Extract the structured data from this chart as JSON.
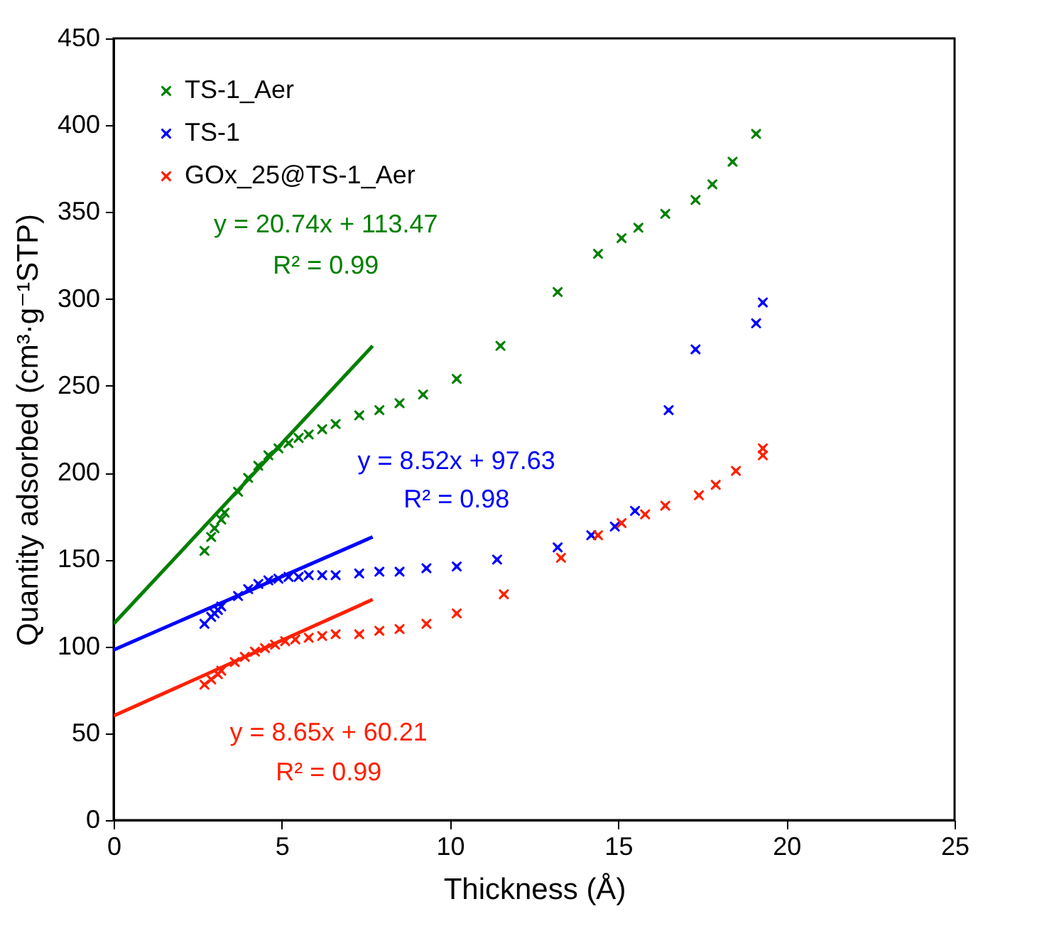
{
  "chart_data": {
    "type": "scatter",
    "xlabel": "Thickness (Å)",
    "ylabel": "Quantity adsorbed (cm³·g⁻¹STP)",
    "xlim": [
      0,
      25
    ],
    "xticks": [
      0,
      5,
      10,
      15,
      20,
      25
    ],
    "ylim": [
      0,
      450
    ],
    "yticks": [
      0,
      50,
      100,
      150,
      200,
      250,
      300,
      350,
      400,
      450
    ],
    "grid": false,
    "legend": "top left",
    "marker": "cross",
    "series": [
      {
        "name": "TS-1_Aer",
        "color": "#008000",
        "x": [
          2.7,
          2.9,
          3.0,
          3.2,
          3.3,
          3.7,
          4.0,
          4.3,
          4.6,
          4.9,
          5.2,
          5.5,
          5.8,
          6.2,
          6.6,
          7.3,
          7.9,
          8.5,
          9.2,
          10.2,
          11.5,
          13.2,
          14.4,
          15.1,
          15.6,
          16.4,
          17.3,
          17.8,
          18.4,
          19.1
        ],
        "values": [
          155,
          163,
          168,
          173,
          177,
          189,
          197,
          204,
          210,
          214,
          217,
          220,
          222,
          225,
          228,
          233,
          236,
          240,
          245,
          254,
          273,
          304,
          326,
          335,
          341,
          349,
          357,
          366,
          379,
          395
        ]
      },
      {
        "name": "TS-1",
        "color": "#0000ff",
        "x": [
          2.7,
          2.9,
          3.0,
          3.1,
          3.2,
          3.7,
          4.0,
          4.3,
          4.6,
          4.9,
          5.2,
          5.5,
          5.8,
          6.2,
          6.6,
          7.3,
          7.9,
          8.5,
          9.3,
          10.2,
          11.4,
          13.2,
          14.2,
          14.9,
          15.5,
          16.5,
          17.3,
          19.1,
          19.3
        ],
        "values": [
          113,
          117,
          119,
          121,
          123,
          129,
          133,
          136,
          138,
          139,
          140,
          140,
          141,
          141,
          141,
          142,
          143,
          143,
          145,
          146,
          150,
          157,
          164,
          169,
          178,
          236,
          271,
          286,
          298
        ]
      },
      {
        "name": "GOx_25@TS-1_Aer",
        "color": "#ff2000",
        "x": [
          2.7,
          2.9,
          3.1,
          3.2,
          3.6,
          3.9,
          4.2,
          4.5,
          4.8,
          5.1,
          5.4,
          5.8,
          6.2,
          6.6,
          7.3,
          7.9,
          8.5,
          9.3,
          10.2,
          11.6,
          13.3,
          14.4,
          15.1,
          15.8,
          16.4,
          17.4,
          17.9,
          18.5,
          19.3,
          19.3
        ],
        "values": [
          78,
          81,
          84,
          86,
          91,
          94,
          97,
          99,
          101,
          103,
          104,
          105,
          106,
          107,
          107,
          109,
          110,
          113,
          119,
          130,
          151,
          164,
          171,
          176,
          181,
          187,
          193,
          201,
          210,
          214
        ]
      },
      {
        "type": "line",
        "marker": "none",
        "color": "#008000",
        "x": [
          0,
          7.7
        ],
        "values": [
          113,
          273
        ]
      },
      {
        "type": "line",
        "marker": "none",
        "color": "#0000ff",
        "x": [
          0,
          7.7
        ],
        "values": [
          98,
          163
        ]
      },
      {
        "type": "line",
        "marker": "none",
        "color": "#ff2000",
        "x": [
          0,
          7.7
        ],
        "values": [
          60,
          127
        ]
      }
    ],
    "annotations": [
      "y = 20.74x + 113.47",
      "R² = 0.99",
      "y = 8.52x + 97.63",
      "R² = 0.98",
      "y = 8.65x + 60.21",
      "R² = 0.99"
    ]
  }
}
